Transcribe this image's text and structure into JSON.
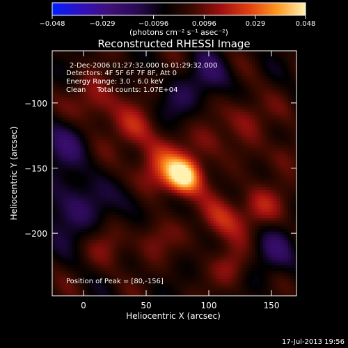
{
  "chart_data": {
    "type": "heatmap",
    "title": "Reconstructed RHESSI Image",
    "xlabel": "Heliocentric X (arcsec)",
    "ylabel": "Heliocentric Y (arcsec)",
    "xlim": [
      -25,
      170
    ],
    "ylim": [
      -248,
      -60
    ],
    "xticks": [
      "0",
      "50",
      "100",
      "150"
    ],
    "yticks": [
      "-100",
      "-150",
      "-200"
    ],
    "colorbar": {
      "ticks": [
        "-0.048",
        "-0.029",
        "-0.0096",
        "0.0096",
        "0.029",
        "0.048"
      ],
      "label": "(photons cm⁻² s⁻¹ asec⁻²)",
      "range": [
        -0.048,
        0.048
      ],
      "stops": [
        "#0020ff",
        "#3010c0",
        "#40107a",
        "#2a0a55",
        "#000000",
        "#3a0a00",
        "#a01010",
        "#e04010",
        "#ff9820",
        "#fff2b0"
      ]
    },
    "annotations": [
      "2-Dec-2006 01:27:32.000 to 01:29:32.000",
      "Detectors: 4F 5F 6F 7F 8F, Att 0",
      "Energy Range: 3.0 - 6.0 keV",
      "Clean     Total counts: 1.07E+04"
    ],
    "peak_label": "Position of Peak = [80,-156]",
    "peak": {
      "x": 80,
      "y": -156,
      "value": 0.048
    },
    "features": [
      {
        "x": 80,
        "y": -156,
        "amp": 1.0,
        "sigma": 10
      },
      {
        "x": 60,
        "y": -150,
        "amp": 0.45,
        "sigma": 14
      },
      {
        "x": 40,
        "y": -120,
        "amp": 0.35,
        "sigma": 12
      },
      {
        "x": 10,
        "y": -100,
        "amp": 0.35,
        "sigma": 13
      },
      {
        "x": 130,
        "y": -110,
        "amp": 0.3,
        "sigma": 12
      },
      {
        "x": 100,
        "y": -130,
        "amp": 0.25,
        "sigma": 11
      },
      {
        "x": 110,
        "y": -190,
        "amp": 0.4,
        "sigma": 12
      },
      {
        "x": 140,
        "y": -180,
        "amp": 0.35,
        "sigma": 12
      },
      {
        "x": 120,
        "y": -225,
        "amp": 0.3,
        "sigma": 11
      },
      {
        "x": 20,
        "y": -210,
        "amp": 0.2,
        "sigma": 12
      },
      {
        "x": 55,
        "y": -205,
        "amp": 0.25,
        "sigma": 11
      },
      {
        "x": 160,
        "y": -140,
        "amp": 0.25,
        "sigma": 10
      },
      {
        "x": -10,
        "y": -180,
        "amp": -0.35,
        "sigma": 18
      },
      {
        "x": -15,
        "y": -130,
        "amp": -0.3,
        "sigma": 14
      },
      {
        "x": 150,
        "y": -215,
        "amp": -0.3,
        "sigma": 14
      },
      {
        "x": 100,
        "y": -80,
        "amp": -0.3,
        "sigma": 13
      },
      {
        "x": 40,
        "y": -175,
        "amp": -0.2,
        "sigma": 12
      },
      {
        "x": 75,
        "y": -100,
        "amp": -0.2,
        "sigma": 12
      }
    ]
  },
  "footer": {
    "timestamp": "17-Jul-2013 19:56"
  }
}
